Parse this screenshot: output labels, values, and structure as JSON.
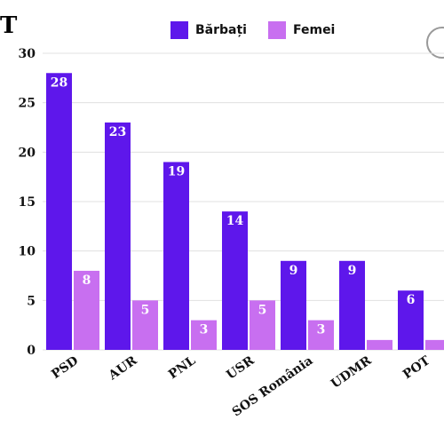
{
  "page": {
    "title": "T"
  },
  "colors": {
    "barbati": "#5e17eb",
    "femei": "#c86ff0"
  },
  "chart_data": {
    "type": "bar",
    "categories": [
      "PSD",
      "AUR",
      "PNL",
      "USR",
      "SOS România",
      "UDMR",
      "POT"
    ],
    "series": [
      {
        "name": "Bărbați",
        "values": [
          28,
          23,
          19,
          14,
          9,
          9,
          6
        ],
        "data_labels": [
          "28",
          "23",
          "19",
          "14",
          "9",
          "9",
          "6"
        ]
      },
      {
        "name": "Femei",
        "values": [
          8,
          5,
          3,
          5,
          3,
          1,
          1
        ],
        "data_labels": [
          "8",
          "5",
          "3",
          "5",
          "3",
          "",
          ""
        ]
      }
    ],
    "ylim": [
      0,
      30
    ],
    "yticks": [
      0,
      5,
      10,
      15,
      20,
      25,
      30
    ],
    "grid": true,
    "legend": "top-center"
  }
}
